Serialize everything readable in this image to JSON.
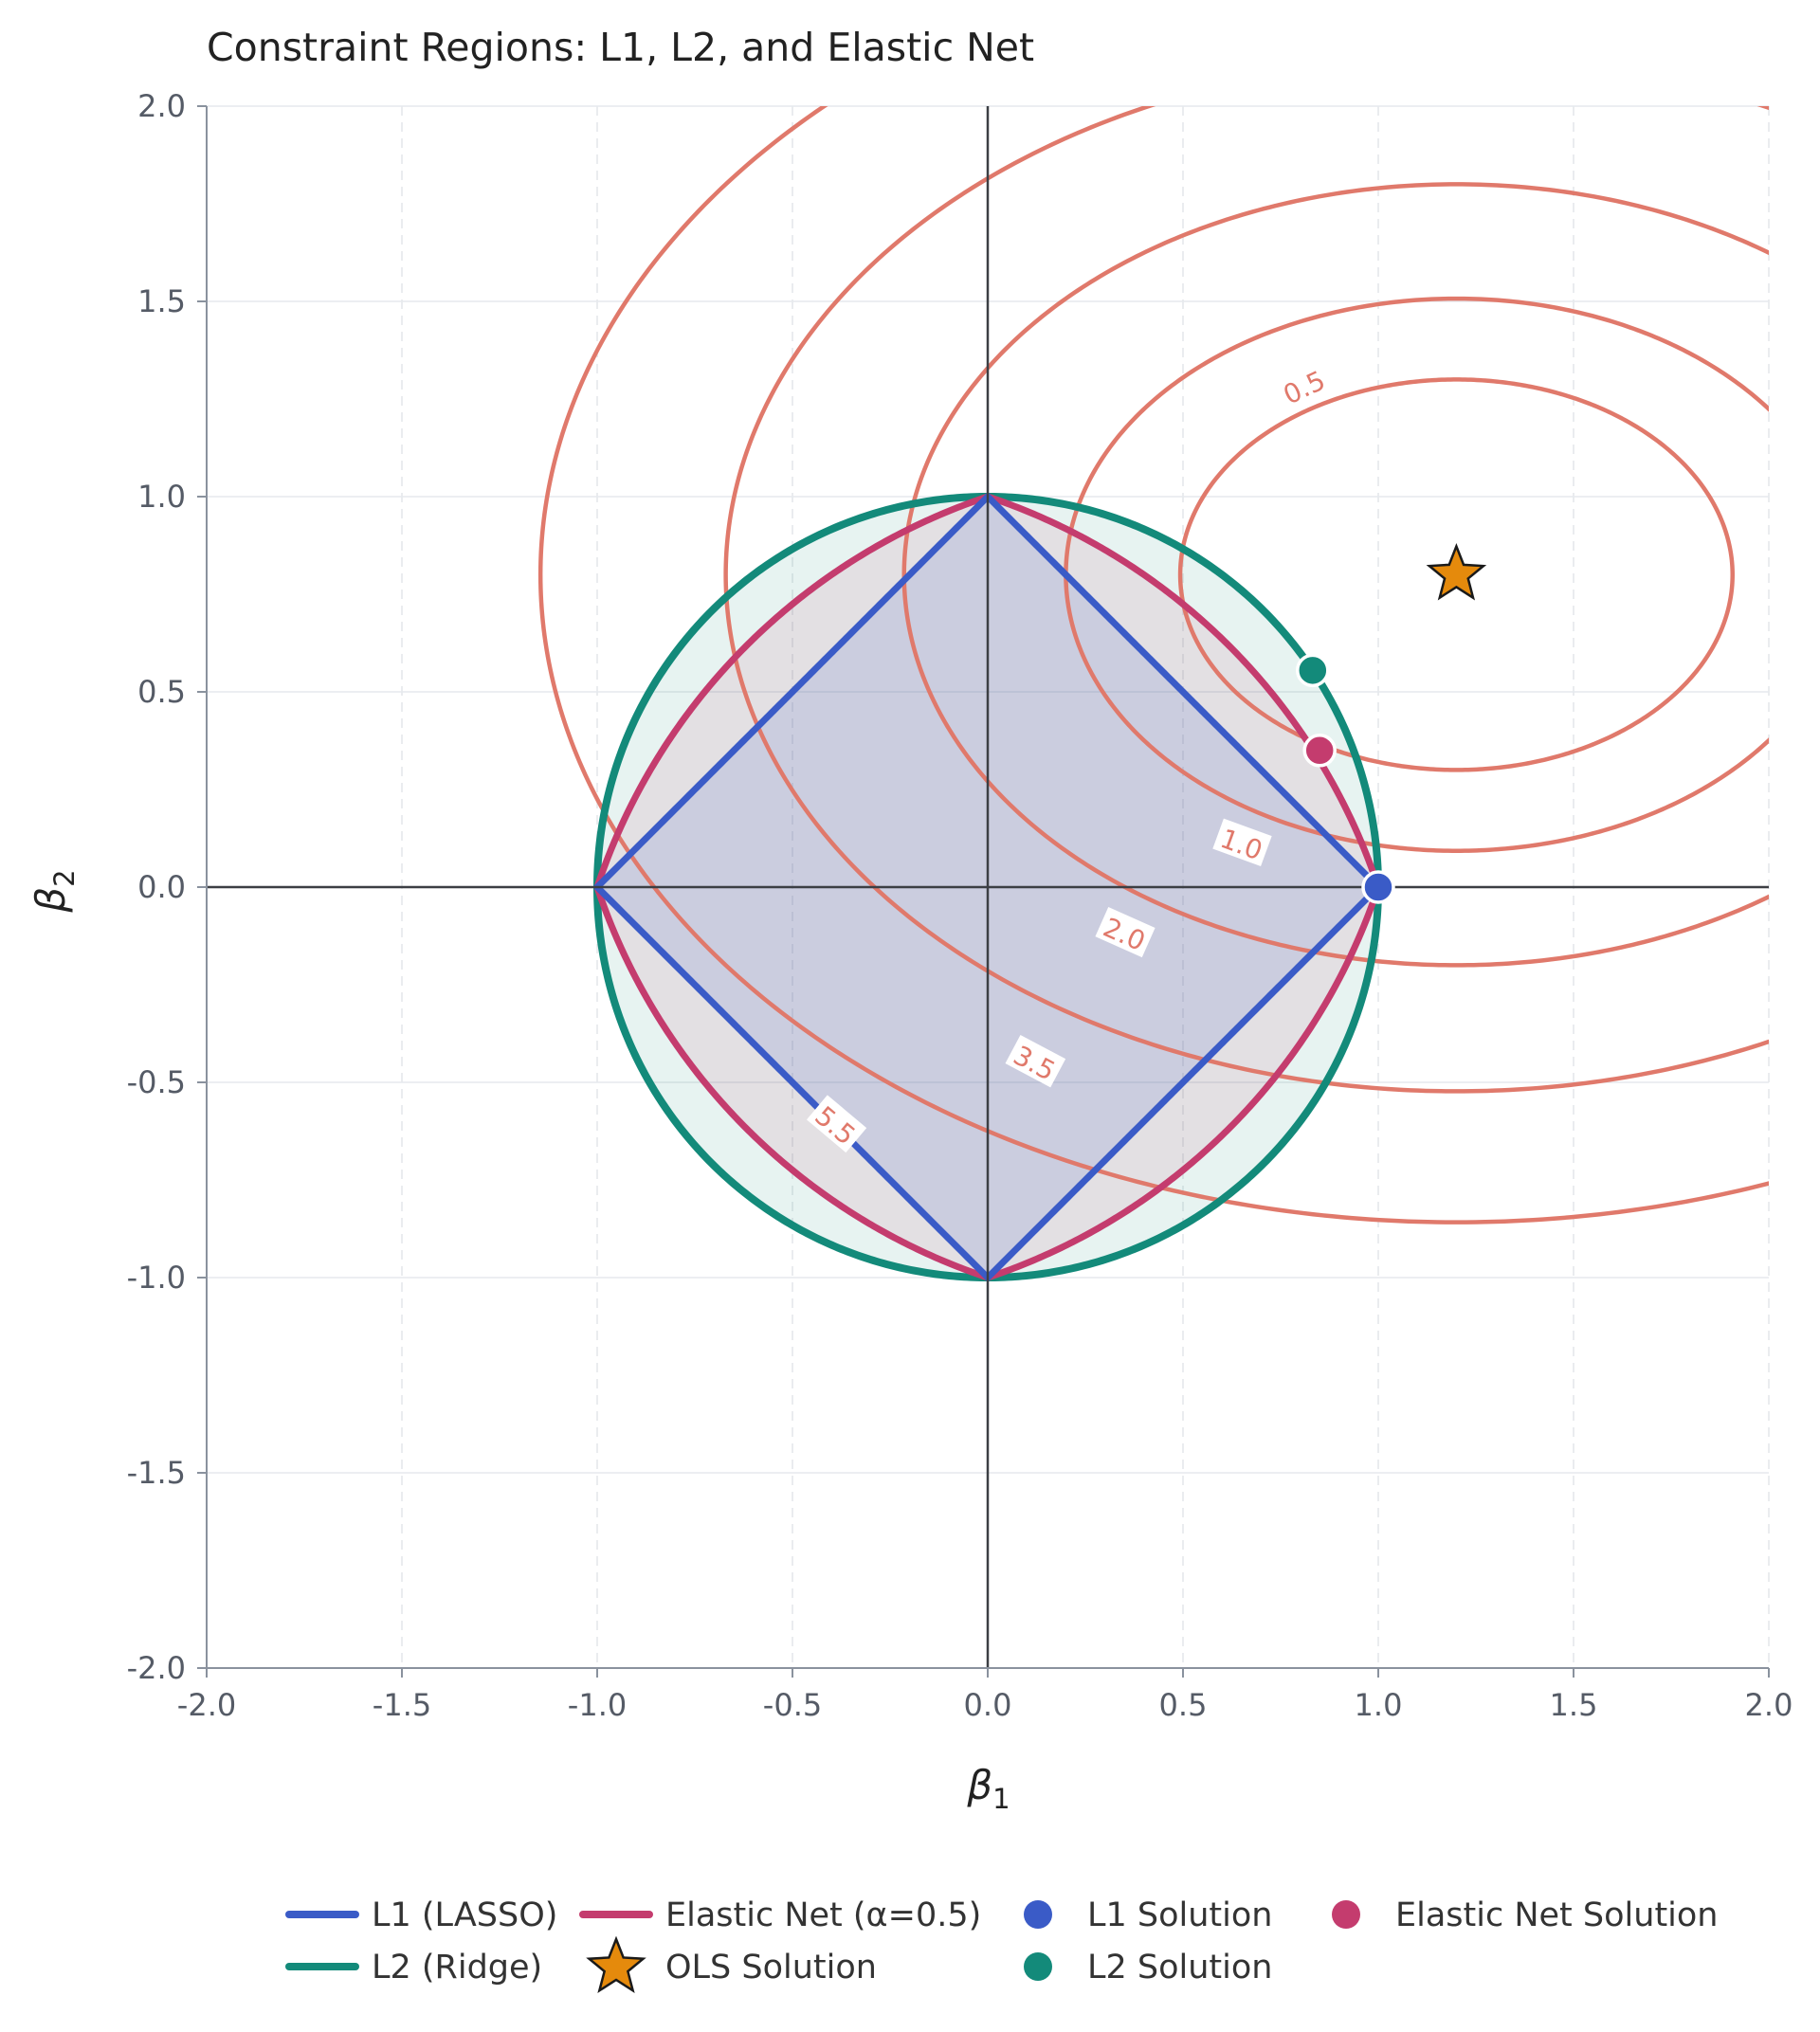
{
  "chart_data": {
    "type": "line",
    "title": "Constraint Regions: L1, L2, and Elastic Net",
    "xlabel_base": "β",
    "xlabel_sub": "1",
    "ylabel_base": "β",
    "ylabel_sub": "2",
    "xlim": [
      -2.0,
      2.0
    ],
    "ylim": [
      -2.0,
      2.0
    ],
    "x_ticks": [
      -2.0,
      -1.5,
      -1.0,
      -0.5,
      0.0,
      0.5,
      1.0,
      1.5,
      2.0
    ],
    "y_ticks": [
      -2.0,
      -1.5,
      -1.0,
      -0.5,
      0.0,
      0.5,
      1.0,
      1.5,
      2.0
    ],
    "x_tick_labels": [
      "-2.0",
      "-1.5",
      "-1.0",
      "-0.5",
      "0.0",
      "0.5",
      "1.0",
      "1.5",
      "2.0"
    ],
    "y_tick_labels": [
      "-2.0",
      "-1.5",
      "-1.0",
      "-0.5",
      "0.0",
      "0.5",
      "1.0",
      "1.5",
      "2.0"
    ],
    "grid": true,
    "legend_placement": "bottom",
    "colors": {
      "l1": "#3a5bc7",
      "l2": "#138a7a",
      "elastic": "#c43c6e",
      "contour": "#e0796b",
      "ols": "#e58a0c"
    },
    "constraints": [
      {
        "key": "l1",
        "name": "L1 (LASSO)",
        "radius": 1.0
      },
      {
        "key": "l2",
        "name": "L2 (Ridge)",
        "radius": 1.0
      },
      {
        "key": "elastic",
        "name": "Elastic Net (α=0.5)",
        "alpha": 0.5,
        "radius": 1.0
      }
    ],
    "contours": {
      "center": [
        1.2,
        0.8
      ],
      "a_coef": 1.0,
      "b_coef": 2.0,
      "levels": [
        0.5,
        1.0,
        2.0,
        3.5,
        5.5
      ],
      "labels": [
        {
          "text": "0.5",
          "x": 0.81,
          "y": 1.28,
          "angle": -25
        },
        {
          "text": "1.0",
          "x": 0.65,
          "y": 0.11,
          "angle": 20
        },
        {
          "text": "2.0",
          "x": 0.35,
          "y": -0.12,
          "angle": 24
        },
        {
          "text": "3.5",
          "x": 0.12,
          "y": -0.45,
          "angle": 28
        },
        {
          "text": "5.5",
          "x": -0.39,
          "y": -0.61,
          "angle": 40
        }
      ]
    },
    "points": [
      {
        "key": "ols",
        "name": "OLS Solution",
        "x": 1.2,
        "y": 0.8,
        "marker": "star"
      },
      {
        "key": "l1",
        "name": "L1 Solution",
        "x": 1.0,
        "y": 0.0,
        "marker": "circle"
      },
      {
        "key": "l2",
        "name": "L2 Solution",
        "x": 0.832,
        "y": 0.555,
        "marker": "circle"
      },
      {
        "key": "elastic",
        "name": "Elastic Net Solution",
        "x": 0.85,
        "y": 0.35,
        "marker": "circle"
      }
    ],
    "legend": [
      {
        "label": "L1 (LASSO)",
        "kind": "line",
        "key": "l1"
      },
      {
        "label": "L2 (Ridge)",
        "kind": "line",
        "key": "l2"
      },
      {
        "label": "Elastic Net (α=0.5)",
        "kind": "line",
        "key": "elastic"
      },
      {
        "label": "OLS Solution",
        "kind": "star",
        "key": "ols"
      },
      {
        "label": "L1 Solution",
        "kind": "dot",
        "key": "l1"
      },
      {
        "label": "L2 Solution",
        "kind": "dot",
        "key": "l2"
      },
      {
        "label": "Elastic Net Solution",
        "kind": "dot",
        "key": "elastic"
      }
    ]
  }
}
